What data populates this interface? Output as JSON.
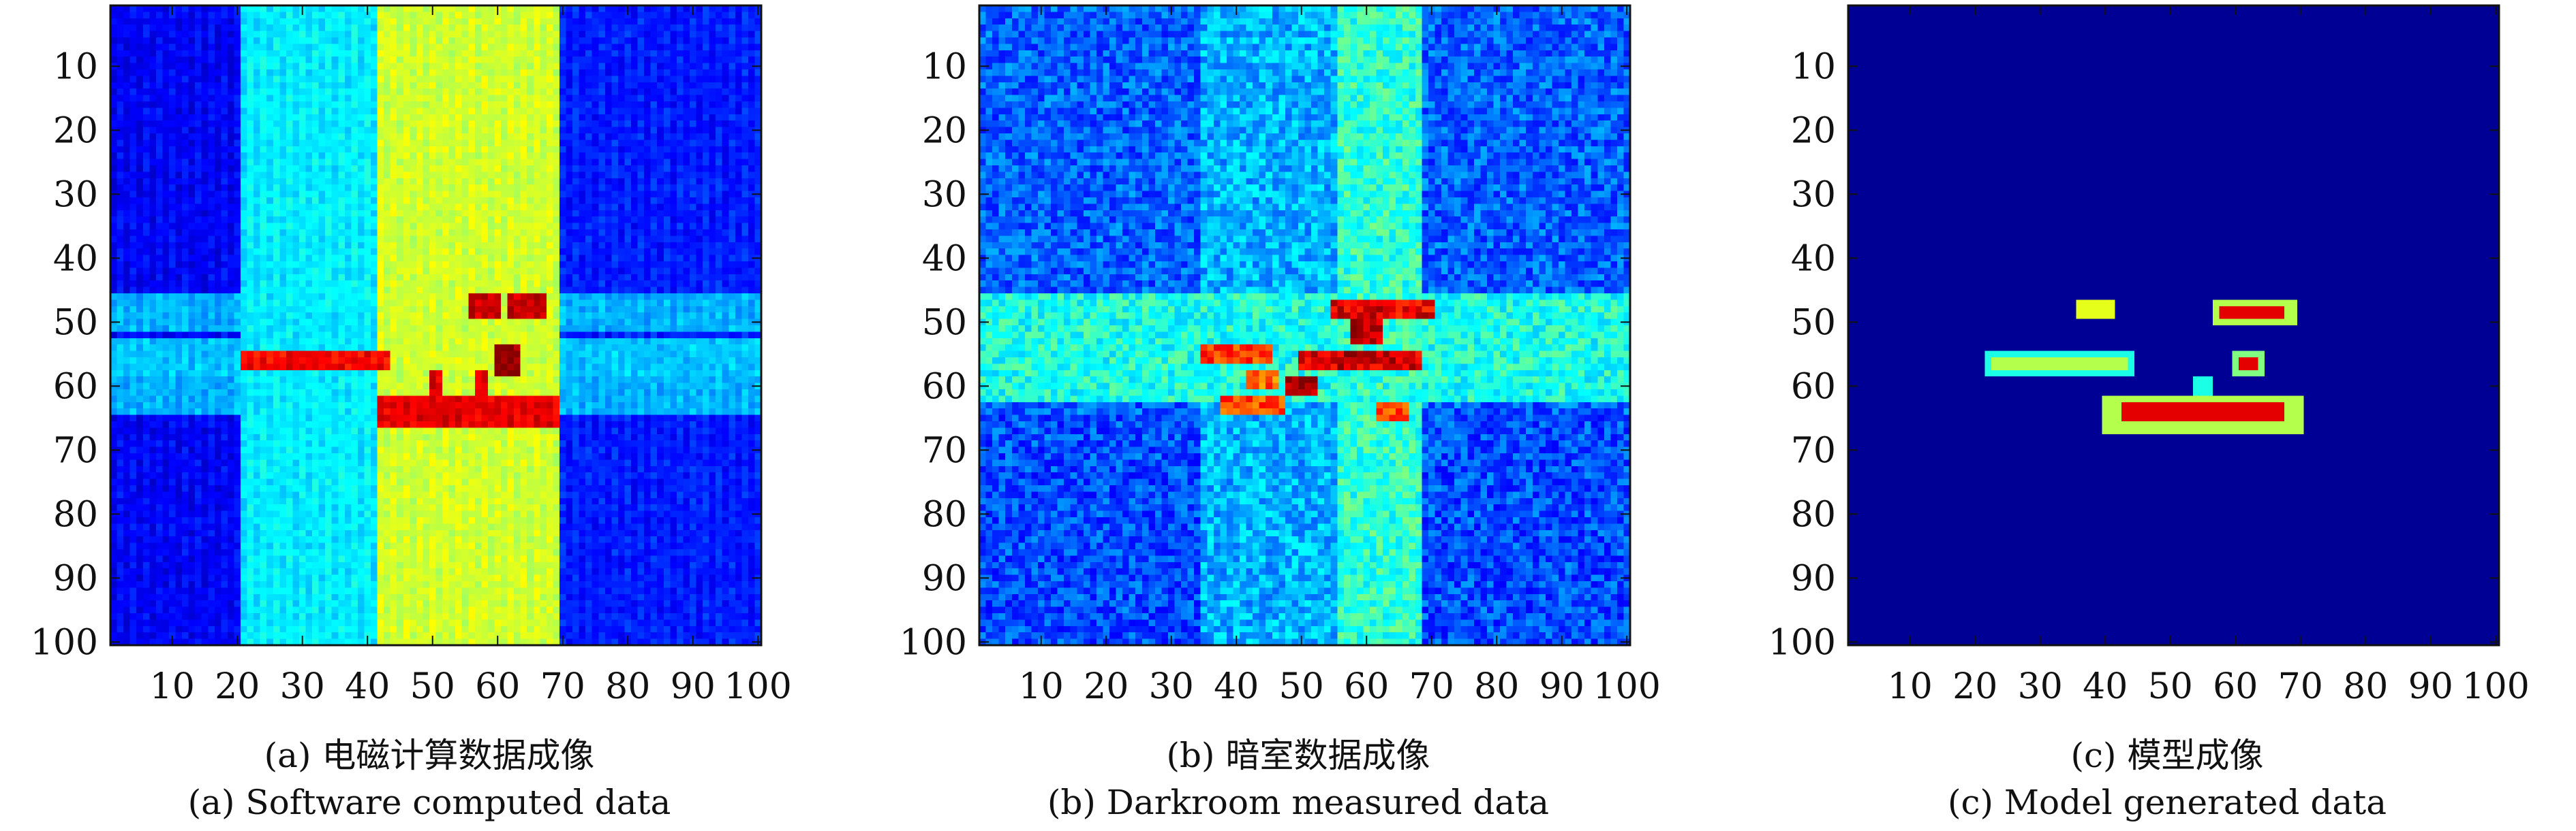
{
  "chart_data": [
    {
      "type": "heatmap",
      "title": "",
      "xlabel": "",
      "ylabel": "",
      "xlim": [
        1,
        100
      ],
      "ylim": [
        1,
        100
      ],
      "x_ticks": [
        10,
        20,
        30,
        40,
        50,
        60,
        70,
        80,
        90,
        100
      ],
      "y_ticks": [
        10,
        20,
        30,
        40,
        50,
        60,
        70,
        80,
        90,
        100
      ],
      "y_reversed": true,
      "colormap": "jet",
      "caption_zh": "(a) 电磁计算数据成像",
      "caption_en": "(a) Software computed data",
      "background_value": 0.12,
      "bands": [
        {
          "axis": "col",
          "from": 1,
          "to": 20,
          "value": 0.12
        },
        {
          "axis": "col",
          "from": 21,
          "to": 41,
          "value": 0.36
        },
        {
          "axis": "col",
          "from": 42,
          "to": 69,
          "value": 0.58
        },
        {
          "axis": "col",
          "from": 70,
          "to": 100,
          "value": 0.15
        },
        {
          "axis": "row",
          "from": 46,
          "to": 51,
          "value": 0.3
        },
        {
          "axis": "row",
          "from": 53,
          "to": 58,
          "value": 0.32
        },
        {
          "axis": "row",
          "from": 59,
          "to": 64,
          "value": 0.3
        }
      ],
      "features": [
        {
          "x": [
            21,
            43
          ],
          "y": [
            55,
            57
          ],
          "value": 0.88
        },
        {
          "x": [
            42,
            69
          ],
          "y": [
            62,
            66
          ],
          "value": 0.9
        },
        {
          "x": [
            56,
            60
          ],
          "y": [
            46,
            49
          ],
          "value": 0.93
        },
        {
          "x": [
            62,
            67
          ],
          "y": [
            46,
            49
          ],
          "value": 0.93
        },
        {
          "x": [
            60,
            63
          ],
          "y": [
            54,
            58
          ],
          "value": 0.98
        },
        {
          "x": [
            50,
            51
          ],
          "y": [
            58,
            62
          ],
          "value": 0.9
        },
        {
          "x": [
            57,
            58
          ],
          "y": [
            58,
            62
          ],
          "value": 0.88
        }
      ]
    },
    {
      "type": "heatmap",
      "title": "",
      "xlabel": "",
      "ylabel": "",
      "xlim": [
        1,
        100
      ],
      "ylim": [
        1,
        100
      ],
      "x_ticks": [
        10,
        20,
        30,
        40,
        50,
        60,
        70,
        80,
        90,
        100
      ],
      "y_ticks": [
        10,
        20,
        30,
        40,
        50,
        60,
        70,
        80,
        90,
        100
      ],
      "y_reversed": true,
      "colormap": "jet",
      "caption_zh": "(b) 暗室数据成像",
      "caption_en": "(b) Darkroom measured data",
      "background_value": 0.2,
      "bands": [
        {
          "axis": "row",
          "from": 1,
          "to": 64,
          "value": 0.22
        },
        {
          "axis": "row",
          "from": 65,
          "to": 100,
          "value": 0.12
        },
        {
          "axis": "row",
          "from": 46,
          "to": 62,
          "value": 0.4
        },
        {
          "axis": "col",
          "from": 35,
          "to": 68,
          "value": 0.3
        },
        {
          "axis": "col",
          "from": 56,
          "to": 68,
          "value": 0.42
        }
      ],
      "features": [
        {
          "x": [
            55,
            70
          ],
          "y": [
            47,
            49
          ],
          "value": 0.9
        },
        {
          "x": [
            50,
            68
          ],
          "y": [
            55,
            57
          ],
          "value": 0.92
        },
        {
          "x": [
            58,
            62
          ],
          "y": [
            50,
            53
          ],
          "value": 0.95
        },
        {
          "x": [
            48,
            52
          ],
          "y": [
            59,
            61
          ],
          "value": 0.97
        },
        {
          "x": [
            35,
            45
          ],
          "y": [
            54,
            56
          ],
          "value": 0.82
        },
        {
          "x": [
            38,
            47
          ],
          "y": [
            62,
            64
          ],
          "value": 0.8
        },
        {
          "x": [
            62,
            66
          ],
          "y": [
            63,
            65
          ],
          "value": 0.82
        },
        {
          "x": [
            42,
            46
          ],
          "y": [
            58,
            60
          ],
          "value": 0.78
        }
      ]
    },
    {
      "type": "heatmap",
      "title": "",
      "xlabel": "",
      "ylabel": "",
      "xlim": [
        1,
        100
      ],
      "ylim": [
        1,
        100
      ],
      "x_ticks": [
        10,
        20,
        30,
        40,
        50,
        60,
        70,
        80,
        90,
        100
      ],
      "y_ticks": [
        10,
        20,
        30,
        40,
        50,
        60,
        70,
        80,
        90,
        100
      ],
      "y_reversed": true,
      "colormap": "jet",
      "caption_zh": "(c) 模型成像",
      "caption_en": "(c) Model generated data",
      "background_value": 0.02,
      "bands": [],
      "features": [
        {
          "x": [
            22,
            44
          ],
          "y": [
            55,
            58
          ],
          "value": 0.4
        },
        {
          "x": [
            23,
            43
          ],
          "y": [
            56,
            57
          ],
          "value": 0.55
        },
        {
          "x": [
            40,
            70
          ],
          "y": [
            62,
            67
          ],
          "value": 0.55
        },
        {
          "x": [
            43,
            67
          ],
          "y": [
            63,
            65
          ],
          "value": 0.9
        },
        {
          "x": [
            54,
            56
          ],
          "y": [
            59,
            61
          ],
          "value": 0.4
        },
        {
          "x": [
            36,
            38
          ],
          "y": [
            47,
            49
          ],
          "value": 0.6
        },
        {
          "x": [
            39,
            41
          ],
          "y": [
            47,
            49
          ],
          "value": 0.6
        },
        {
          "x": [
            57,
            69
          ],
          "y": [
            47,
            50
          ],
          "value": 0.55
        },
        {
          "x": [
            58,
            62
          ],
          "y": [
            48,
            49
          ],
          "value": 0.9
        },
        {
          "x": [
            63,
            67
          ],
          "y": [
            48,
            49
          ],
          "value": 0.9
        },
        {
          "x": [
            60,
            64
          ],
          "y": [
            55,
            58
          ],
          "value": 0.5
        },
        {
          "x": [
            61,
            63
          ],
          "y": [
            56,
            57
          ],
          "value": 0.9
        }
      ]
    }
  ]
}
